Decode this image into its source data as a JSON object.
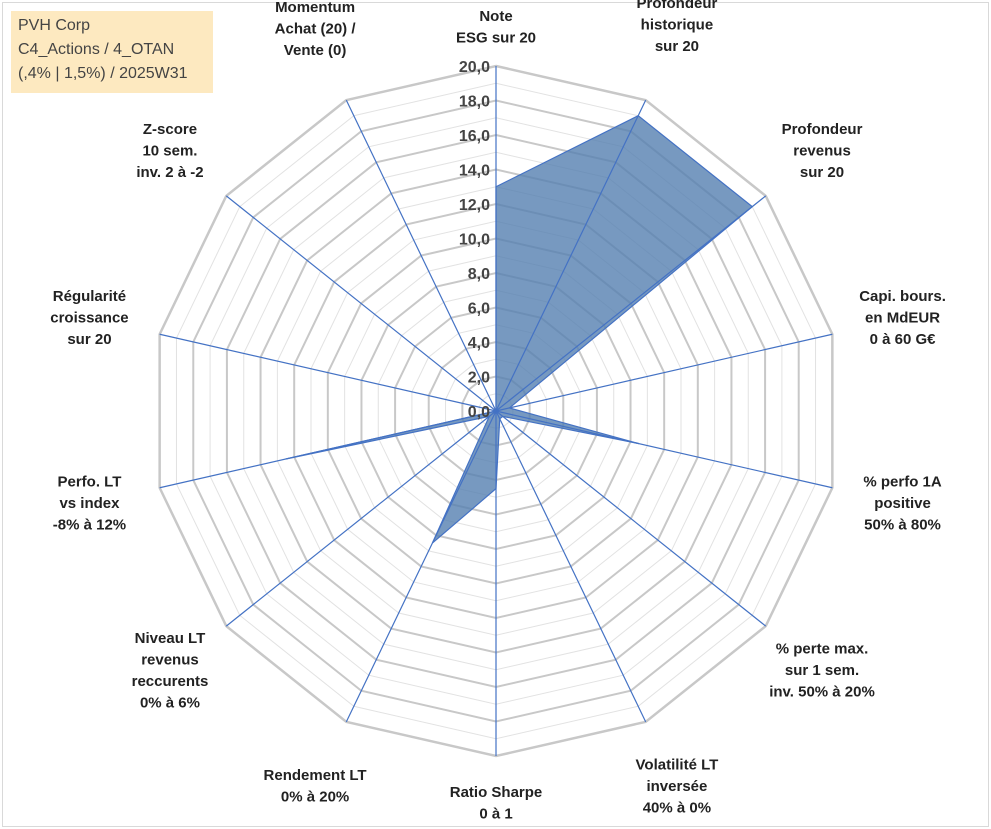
{
  "info": {
    "line1": "PVH Corp",
    "line2": "C4_Actions / 4_OTAN",
    "line3": "(,4% | 1,5%) / 2025W31"
  },
  "chart_data": {
    "type": "radar",
    "title": "",
    "r_min": 0,
    "r_max": 20,
    "r_step": 2,
    "tick_labels": [
      "0,0",
      "2,0",
      "4,0",
      "6,0",
      "8,0",
      "10,0",
      "12,0",
      "14,0",
      "16,0",
      "18,0",
      "20,0"
    ],
    "axes": [
      [
        "Note",
        "ESG sur 20"
      ],
      [
        "Profondeur",
        "historique",
        "sur 20"
      ],
      [
        "Profondeur",
        "revenus",
        "sur 20"
      ],
      [
        "Capi. bours.",
        "en MdEUR",
        "0 à 60 G€"
      ],
      [
        "% perfo 1A",
        "positive",
        "50% à 80%"
      ],
      [
        "% perte max.",
        "sur 1 sem.",
        "inv. 50% à 20%"
      ],
      [
        "Volatilité LT",
        "inversée",
        "40% à 0%"
      ],
      [
        "Ratio Sharpe",
        "0 à 1"
      ],
      [
        "Rendement LT",
        "0% à 20%"
      ],
      [
        "Niveau LT",
        "revenus",
        "reccurents",
        "0% à 6%"
      ],
      [
        "Perfo. LT",
        "vs index",
        "-8% à 12%"
      ],
      [
        "Régularité",
        "croissance",
        "sur 20"
      ],
      [
        "Z-score",
        "10 sem.",
        "inv. 2 à -2"
      ],
      [
        "Momentum",
        "Achat (20) /",
        "Vente (0)"
      ]
    ],
    "series": [
      {
        "values": [
          13.0,
          19.0,
          19.0,
          0.8,
          8.5,
          0.5,
          0.5,
          4.5,
          8.5,
          0.5,
          12.5,
          0.0,
          0.0,
          0.0
        ]
      }
    ],
    "colors": {
      "fill": "#5580b0",
      "outline": "#4472c4",
      "grid_major": "#c8c8c8",
      "grid_minor": "#e2e2e2",
      "spoke": "#4472c4"
    },
    "grid": true,
    "legend": "none"
  }
}
